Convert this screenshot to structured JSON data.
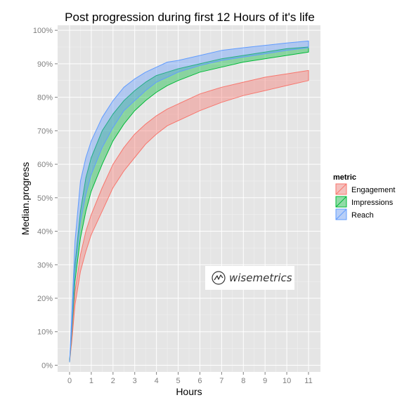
{
  "chart_data": {
    "type": "area",
    "title": "Post progression during first 12 Hours of it's life",
    "xlabel": "Hours",
    "ylabel": "Median.progress",
    "xlim": [
      -0.55,
      11.55
    ],
    "ylim": [
      -0.02,
      1.015
    ],
    "x_ticks": [
      0,
      1,
      2,
      3,
      4,
      5,
      6,
      7,
      8,
      9,
      10,
      11
    ],
    "y_ticks": [
      0,
      0.1,
      0.2,
      0.3,
      0.4,
      0.5,
      0.6,
      0.7,
      0.8,
      0.9,
      1.0
    ],
    "y_tick_labels": [
      "0%",
      "10%",
      "20%",
      "30%",
      "40%",
      "50%",
      "60%",
      "70%",
      "80%",
      "90%",
      "100%"
    ],
    "grid": true,
    "legend": {
      "title": "metric",
      "position": "right"
    },
    "series": [
      {
        "name": "Engagement",
        "color": "#f8766d",
        "x": [
          0,
          0.1,
          0.25,
          0.5,
          0.75,
          1,
          1.5,
          2,
          2.5,
          3,
          3.5,
          4,
          4.5,
          5,
          6,
          7,
          8,
          9,
          10,
          11
        ],
        "upper": [
          0.01,
          0.09,
          0.22,
          0.33,
          0.4,
          0.45,
          0.53,
          0.6,
          0.65,
          0.69,
          0.72,
          0.745,
          0.765,
          0.78,
          0.81,
          0.83,
          0.845,
          0.86,
          0.87,
          0.88
        ],
        "lower": [
          0.01,
          0.07,
          0.18,
          0.28,
          0.34,
          0.39,
          0.46,
          0.53,
          0.58,
          0.62,
          0.66,
          0.69,
          0.715,
          0.73,
          0.76,
          0.785,
          0.805,
          0.82,
          0.835,
          0.85
        ]
      },
      {
        "name": "Impressions",
        "color": "#00ba38",
        "x": [
          0,
          0.1,
          0.25,
          0.5,
          0.75,
          1,
          1.5,
          2,
          2.5,
          3,
          3.5,
          4,
          4.5,
          5,
          6,
          7,
          8,
          9,
          10,
          11
        ],
        "upper": [
          0.01,
          0.12,
          0.3,
          0.46,
          0.56,
          0.62,
          0.7,
          0.75,
          0.79,
          0.82,
          0.845,
          0.865,
          0.875,
          0.885,
          0.9,
          0.915,
          0.925,
          0.935,
          0.945,
          0.95
        ],
        "lower": [
          0.01,
          0.1,
          0.25,
          0.38,
          0.46,
          0.52,
          0.6,
          0.67,
          0.72,
          0.76,
          0.79,
          0.815,
          0.835,
          0.85,
          0.875,
          0.89,
          0.905,
          0.915,
          0.925,
          0.935
        ]
      },
      {
        "name": "Reach",
        "color": "#619cff",
        "x": [
          0,
          0.1,
          0.25,
          0.5,
          0.75,
          1,
          1.5,
          2,
          2.5,
          3,
          3.5,
          4,
          4.5,
          5,
          6,
          7,
          8,
          9,
          10,
          11
        ],
        "upper": [
          0.01,
          0.15,
          0.37,
          0.55,
          0.62,
          0.67,
          0.74,
          0.79,
          0.83,
          0.855,
          0.875,
          0.89,
          0.905,
          0.91,
          0.925,
          0.94,
          0.948,
          0.955,
          0.962,
          0.968
        ],
        "lower": [
          0.01,
          0.11,
          0.28,
          0.43,
          0.51,
          0.57,
          0.65,
          0.71,
          0.76,
          0.79,
          0.82,
          0.845,
          0.86,
          0.875,
          0.895,
          0.91,
          0.92,
          0.93,
          0.94,
          0.948
        ]
      }
    ]
  },
  "watermark": {
    "text": "wisemetrics",
    "icon": "wisemetrics-logo-icon"
  }
}
